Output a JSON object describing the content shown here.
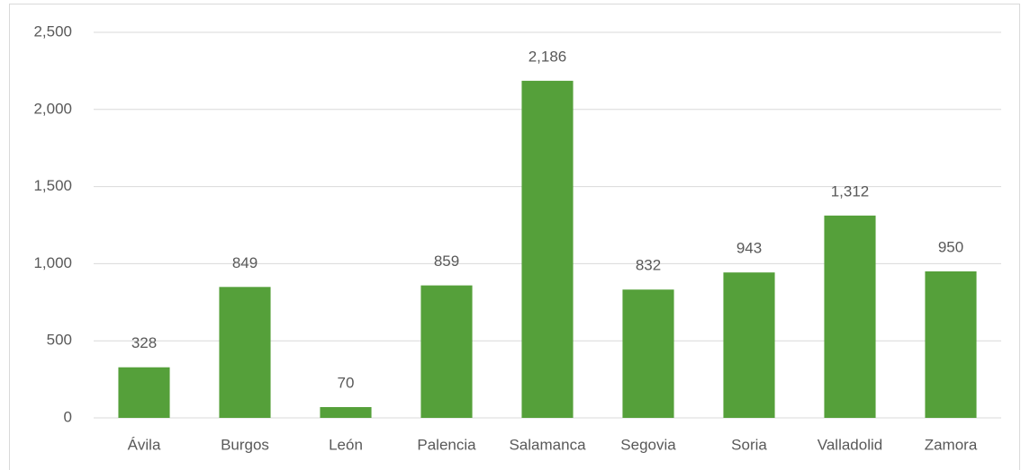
{
  "chart_data": {
    "type": "bar",
    "categories": [
      "Ávila",
      "Burgos",
      "León",
      "Palencia",
      "Salamanca",
      "Segovia",
      "Soria",
      "Valladolid",
      "Zamora"
    ],
    "values": [
      328,
      849,
      70,
      859,
      2186,
      832,
      943,
      1312,
      950
    ],
    "value_labels": [
      "328",
      "849",
      "70",
      "859",
      "2,186",
      "832",
      "943",
      "1,312",
      "950"
    ],
    "color": "#55a03a",
    "ylim": [
      0,
      2500
    ],
    "yticks": [
      0,
      500,
      {
        "value": 1000,
        "label": "1,000"
      },
      {
        "value": 1500,
        "label": "1,500"
      },
      {
        "value": 2000,
        "label": "2,000"
      },
      {
        "value": 2500,
        "label": "2,500"
      }
    ],
    "grid": true
  }
}
